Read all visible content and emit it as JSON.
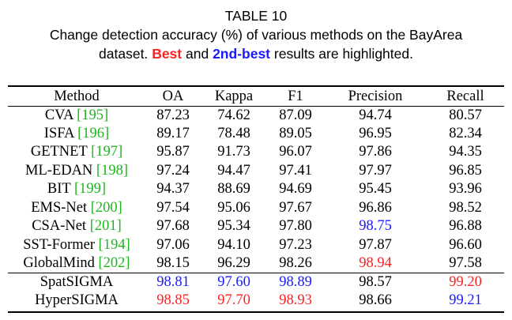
{
  "caption": {
    "title": "TABLE 10",
    "line1": "Change detection accuracy (%) of various methods on the BayArea",
    "line2_prefix": "dataset.",
    "best_label": "Best",
    "and_text": "and",
    "second_label": "2nd-best",
    "line2_suffix": "results are highlighted."
  },
  "table": {
    "headers": [
      "Method",
      "OA",
      "Kappa",
      "F1",
      "Precision",
      "Recall"
    ],
    "rows": [
      {
        "name": "CVA",
        "ref": "[195]",
        "values": [
          "87.23",
          "74.62",
          "87.09",
          "94.74",
          "80.57"
        ],
        "marks": [
          "",
          "",
          "",
          "",
          ""
        ]
      },
      {
        "name": "ISFA",
        "ref": "[196]",
        "values": [
          "89.17",
          "78.48",
          "89.05",
          "96.95",
          "82.34"
        ],
        "marks": [
          "",
          "",
          "",
          "",
          ""
        ]
      },
      {
        "name": "GETNET",
        "ref": "[197]",
        "values": [
          "95.87",
          "91.73",
          "96.07",
          "97.86",
          "94.35"
        ],
        "marks": [
          "",
          "",
          "",
          "",
          ""
        ]
      },
      {
        "name": "ML-EDAN",
        "ref": "[198]",
        "values": [
          "97.24",
          "94.47",
          "97.41",
          "97.97",
          "96.85"
        ],
        "marks": [
          "",
          "",
          "",
          "",
          ""
        ]
      },
      {
        "name": "BIT",
        "ref": "[199]",
        "values": [
          "94.37",
          "88.69",
          "94.69",
          "95.45",
          "93.96"
        ],
        "marks": [
          "",
          "",
          "",
          "",
          ""
        ]
      },
      {
        "name": "EMS-Net",
        "ref": "[200]",
        "values": [
          "97.54",
          "95.06",
          "97.67",
          "96.86",
          "98.52"
        ],
        "marks": [
          "",
          "",
          "",
          "",
          ""
        ]
      },
      {
        "name": "CSA-Net",
        "ref": "[201]",
        "values": [
          "97.68",
          "95.34",
          "97.80",
          "98.75",
          "96.88"
        ],
        "marks": [
          "",
          "",
          "",
          "s",
          ""
        ]
      },
      {
        "name": "SST-Former",
        "ref": "[194]",
        "values": [
          "97.06",
          "94.10",
          "97.23",
          "97.87",
          "96.60"
        ],
        "marks": [
          "",
          "",
          "",
          "",
          ""
        ]
      },
      {
        "name": "GlobalMind",
        "ref": "[202]",
        "values": [
          "98.15",
          "96.29",
          "98.26",
          "98.94",
          "97.58"
        ],
        "marks": [
          "",
          "",
          "",
          "b",
          ""
        ]
      },
      {
        "name": "SpatSIGMA",
        "ref": "",
        "values": [
          "98.81",
          "97.60",
          "98.89",
          "98.57",
          "99.20"
        ],
        "marks": [
          "s",
          "s",
          "s",
          "",
          "b"
        ]
      },
      {
        "name": "HyperSIGMA",
        "ref": "",
        "values": [
          "98.85",
          "97.70",
          "98.93",
          "98.66",
          "99.21"
        ],
        "marks": [
          "b",
          "b",
          "b",
          "",
          "s"
        ]
      }
    ]
  },
  "colors": {
    "best": "#ff2020",
    "second_best": "#1a1aff",
    "citation": "#1fb51f"
  }
}
